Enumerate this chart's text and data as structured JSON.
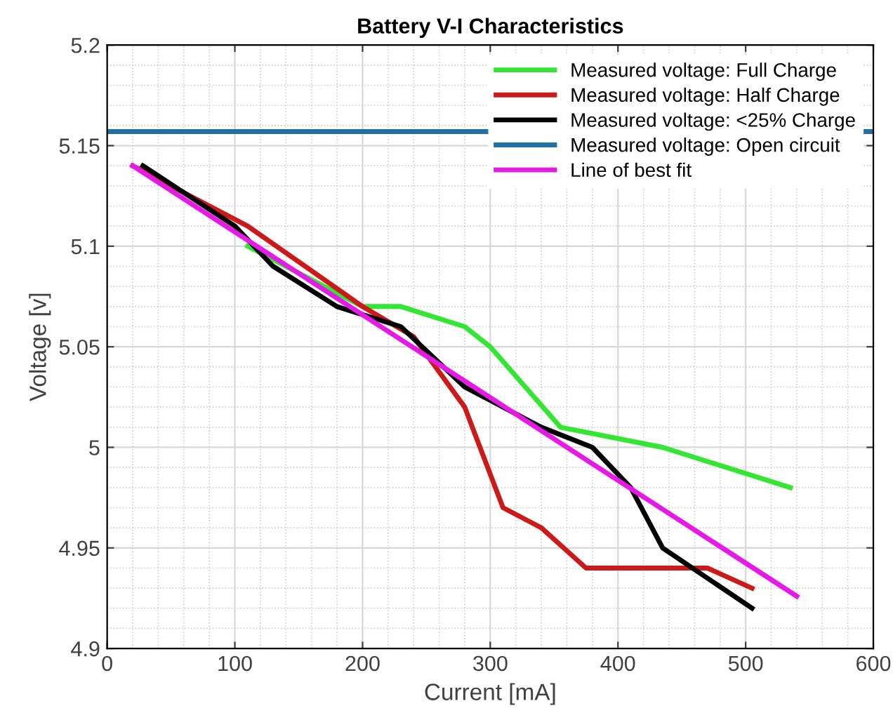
{
  "chart_data": {
    "type": "line",
    "title": "Battery V-I Characteristics",
    "xlabel": "Current [mA]",
    "ylabel": "Voltage [v]",
    "xlim": [
      0,
      600
    ],
    "xticks": [
      0,
      100,
      200,
      300,
      400,
      500,
      600
    ],
    "ylim": [
      4.9,
      5.2
    ],
    "yticks": [
      4.9,
      4.95,
      5,
      5.05,
      5.1,
      5.15,
      5.2
    ],
    "grid": true,
    "legend": "top right",
    "marker": "none",
    "line_style": "solid",
    "series": [
      {
        "name": "Measured voltage: Full Charge",
        "color": "#33e633",
        "x": [
          110,
          200,
          230,
          280,
          300,
          355,
          435,
          535
        ],
        "values": [
          5.1,
          5.07,
          5.07,
          5.06,
          5.05,
          5.01,
          5.0,
          4.98
        ]
      },
      {
        "name": "Measured voltage: Half Charge",
        "color": "#cc1a1a",
        "x": [
          20,
          110,
          200,
          240,
          280,
          310,
          340,
          375,
          470,
          505
        ],
        "values": [
          5.14,
          5.11,
          5.07,
          5.055,
          5.02,
          4.97,
          4.96,
          4.94,
          4.94,
          4.93
        ]
      },
      {
        "name": "Measured voltage: <25% Charge",
        "color": "#000000",
        "x": [
          28,
          100,
          130,
          180,
          230,
          280,
          340,
          380,
          410,
          435,
          505
        ],
        "values": [
          5.14,
          5.11,
          5.09,
          5.07,
          5.06,
          5.03,
          5.01,
          5.0,
          4.98,
          4.95,
          4.92
        ]
      },
      {
        "name": "Measured voltage: Open circuit",
        "color": "#1f6fa8",
        "x": [
          0,
          600
        ],
        "values": [
          5.157,
          5.157
        ]
      },
      {
        "name": "Line of best fit",
        "color": "#e619e6",
        "x": [
          20,
          540
        ],
        "values": [
          5.14,
          4.926
        ]
      }
    ]
  }
}
